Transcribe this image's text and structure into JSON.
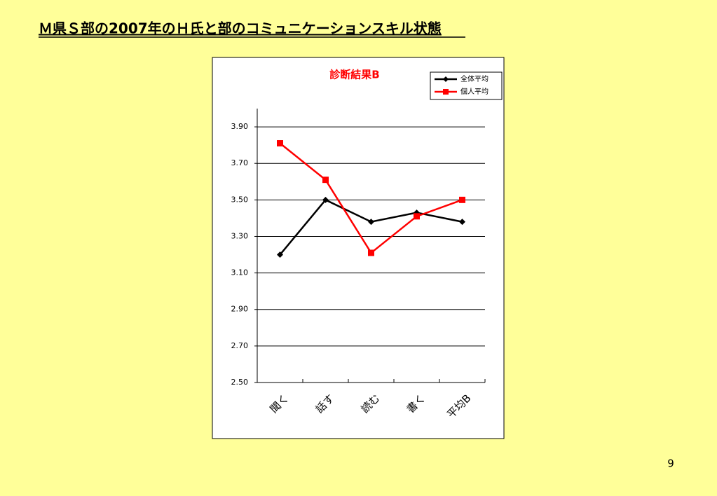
{
  "slide": {
    "title": "Ｍ県Ｓ部の2007年のＨ氏と部のコミュニケーションスキル状態",
    "page_number": "9"
  },
  "chart_data": {
    "type": "line",
    "title": "診断結果B",
    "categories": [
      "聞く",
      "話す",
      "読む",
      "書く",
      "平均B"
    ],
    "series": [
      {
        "name": "全体平均",
        "color": "#000000",
        "marker": "diamond",
        "values": [
          3.2,
          3.5,
          3.38,
          3.43,
          3.38
        ]
      },
      {
        "name": "個人平均",
        "color": "#ff0000",
        "marker": "square",
        "values": [
          3.81,
          3.61,
          3.21,
          3.41,
          3.5
        ]
      }
    ],
    "ylim": [
      2.5,
      4.0
    ],
    "yticks": [
      {
        "value": 2.5,
        "label": "2.50"
      },
      {
        "value": 2.7,
        "label": "2.70"
      },
      {
        "value": 2.9,
        "label": "2.90"
      },
      {
        "value": 3.1,
        "label": "3.10"
      },
      {
        "value": 3.3,
        "label": "3.30"
      },
      {
        "value": 3.5,
        "label": "3.50"
      },
      {
        "value": 3.7,
        "label": "3.70"
      },
      {
        "value": 3.9,
        "label": "3.90"
      }
    ],
    "grid": true,
    "legend": "top-right"
  }
}
